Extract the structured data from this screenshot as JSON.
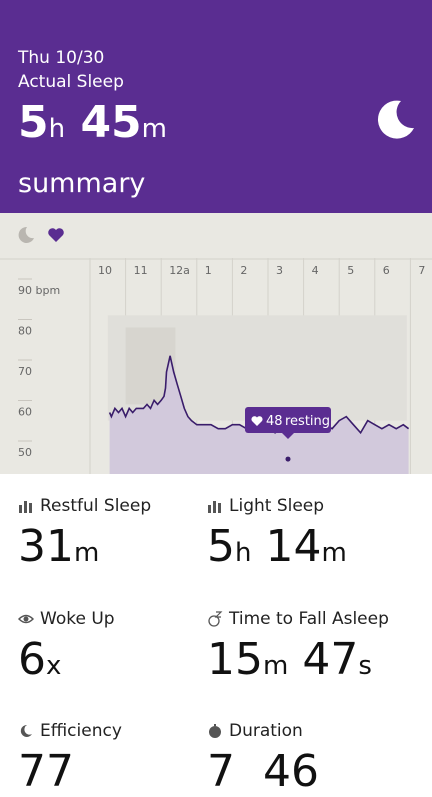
{
  "header": {
    "date": "Thu 10/30",
    "label": "Actual Sleep",
    "duration": {
      "hours": "5",
      "hours_unit": "h",
      "minutes": "45",
      "minutes_unit": "m"
    },
    "section": "summary"
  },
  "chart_data": {
    "type": "area",
    "x_tick_labels": [
      "10",
      "11",
      "12a",
      "1",
      "2",
      "3",
      "4",
      "5",
      "6",
      "7"
    ],
    "y_tick_labels": [
      "90 bpm",
      "80",
      "70",
      "60",
      "50"
    ],
    "y_ticks": [
      90,
      80,
      70,
      60,
      50
    ],
    "ylim": [
      47,
      97
    ],
    "x_range_hours": [
      21.5,
      31.6
    ],
    "annotation": {
      "value": "48",
      "text": "resting"
    },
    "heart_rate": {
      "x": [
        22.55,
        22.6,
        22.7,
        22.8,
        22.9,
        23.0,
        23.1,
        23.2,
        23.3,
        23.4,
        23.5,
        23.6,
        23.7,
        23.8,
        23.9,
        24.0,
        24.08,
        24.12,
        24.15,
        24.2,
        24.25,
        24.35,
        24.45,
        24.55,
        24.65,
        24.75,
        24.85,
        25.0,
        25.2,
        25.4,
        25.6,
        25.8,
        26.0,
        26.2,
        26.4,
        26.6,
        26.8,
        27.0,
        27.2,
        27.4,
        27.6,
        27.8,
        28.0,
        28.2,
        28.4,
        28.6,
        28.8,
        29.0,
        29.2,
        29.4,
        29.6,
        29.8,
        30.0,
        30.2,
        30.4,
        30.6,
        30.8,
        30.95
      ],
      "y": [
        60,
        59,
        61,
        60,
        61,
        59,
        61,
        60,
        61,
        61,
        61,
        62,
        61,
        63,
        62,
        63,
        64,
        66,
        70,
        72,
        74,
        70,
        67,
        64,
        61,
        59,
        58,
        57,
        57,
        57,
        56,
        56,
        57,
        57,
        56,
        56,
        57,
        56,
        55,
        56,
        56,
        57,
        57,
        56,
        58,
        57,
        56,
        58,
        59,
        57,
        55,
        58,
        57,
        56,
        57,
        56,
        57,
        56
      ]
    },
    "sleep_bands": {
      "light_range": [
        58,
        84
      ],
      "deep_range": [
        62,
        81
      ]
    }
  },
  "stats": {
    "restful": {
      "title": "Restful Sleep",
      "value": "31",
      "unit": "m"
    },
    "light": {
      "title": "Light Sleep",
      "hours": "5",
      "hours_unit": "h",
      "minutes": "14",
      "minutes_unit": "m"
    },
    "woke": {
      "title": "Woke Up",
      "value": "6",
      "unit": "x"
    },
    "fall_asleep": {
      "title": "Time to Fall Asleep",
      "minutes": "15",
      "minutes_unit": "m",
      "seconds": "47",
      "seconds_unit": "s"
    },
    "efficiency": {
      "title": "Efficiency",
      "value": "77"
    },
    "duration": {
      "title": "Duration",
      "hours": "7",
      "minutes": "46"
    }
  },
  "colors": {
    "header": "#5a2d91",
    "chart_bg": "#e9e8e2",
    "hr_fill": "#d2c9dc",
    "hr_line": "#3a1d6b"
  }
}
